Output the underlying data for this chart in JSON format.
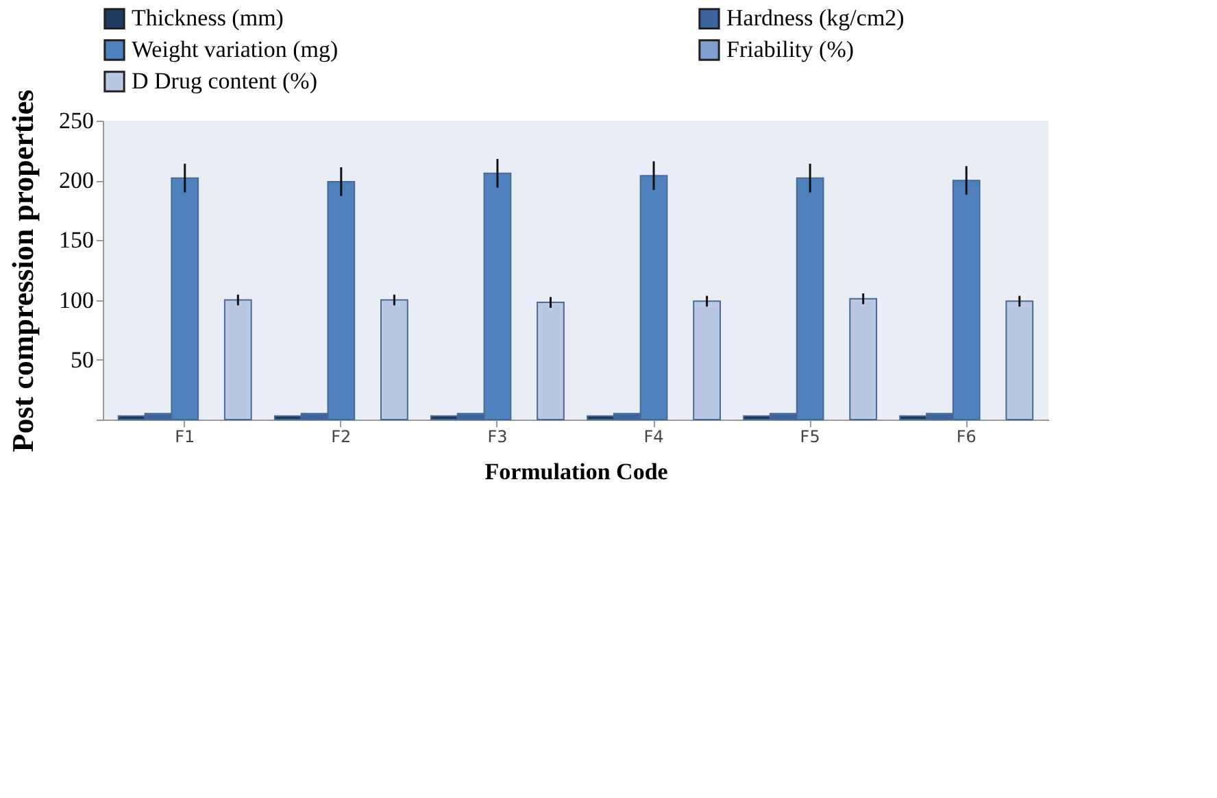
{
  "chart_data": {
    "type": "bar",
    "xlabel": "Formulation Code",
    "ylabel": "Post compression properties",
    "categories": [
      "F1",
      "F2",
      "F3",
      "F4",
      "F5",
      "F6"
    ],
    "series": [
      {
        "name": "Thickness (mm)",
        "color": "#1f3a5f",
        "values": [
          3,
          3,
          3,
          3,
          3,
          3
        ]
      },
      {
        "name": "Hardness (kg/cm2)",
        "color": "#3b64a0",
        "values": [
          5,
          5,
          5,
          5,
          5,
          5
        ]
      },
      {
        "name": "Weight variation (mg)",
        "color": "#4f81bd",
        "values": [
          202,
          199,
          206,
          204,
          202,
          200
        ],
        "errors": [
          12,
          12,
          12,
          12,
          12,
          12
        ]
      },
      {
        "name": "Friability (%)",
        "color": "#7f9fcf",
        "values": [
          null,
          null,
          null,
          null,
          null,
          null
        ]
      },
      {
        "name": "D Drug content (%)",
        "color": "#b9c9e3",
        "values": [
          100,
          100,
          98,
          99,
          101,
          99
        ],
        "errors": [
          4.5,
          4.5,
          4.5,
          4.5,
          4.5,
          4.5
        ]
      }
    ],
    "ylim": [
      0,
      250
    ],
    "yticks": [
      {
        "value": 0,
        "label": null
      },
      50,
      100,
      150,
      200,
      250
    ],
    "grid": false,
    "legend": "top"
  }
}
